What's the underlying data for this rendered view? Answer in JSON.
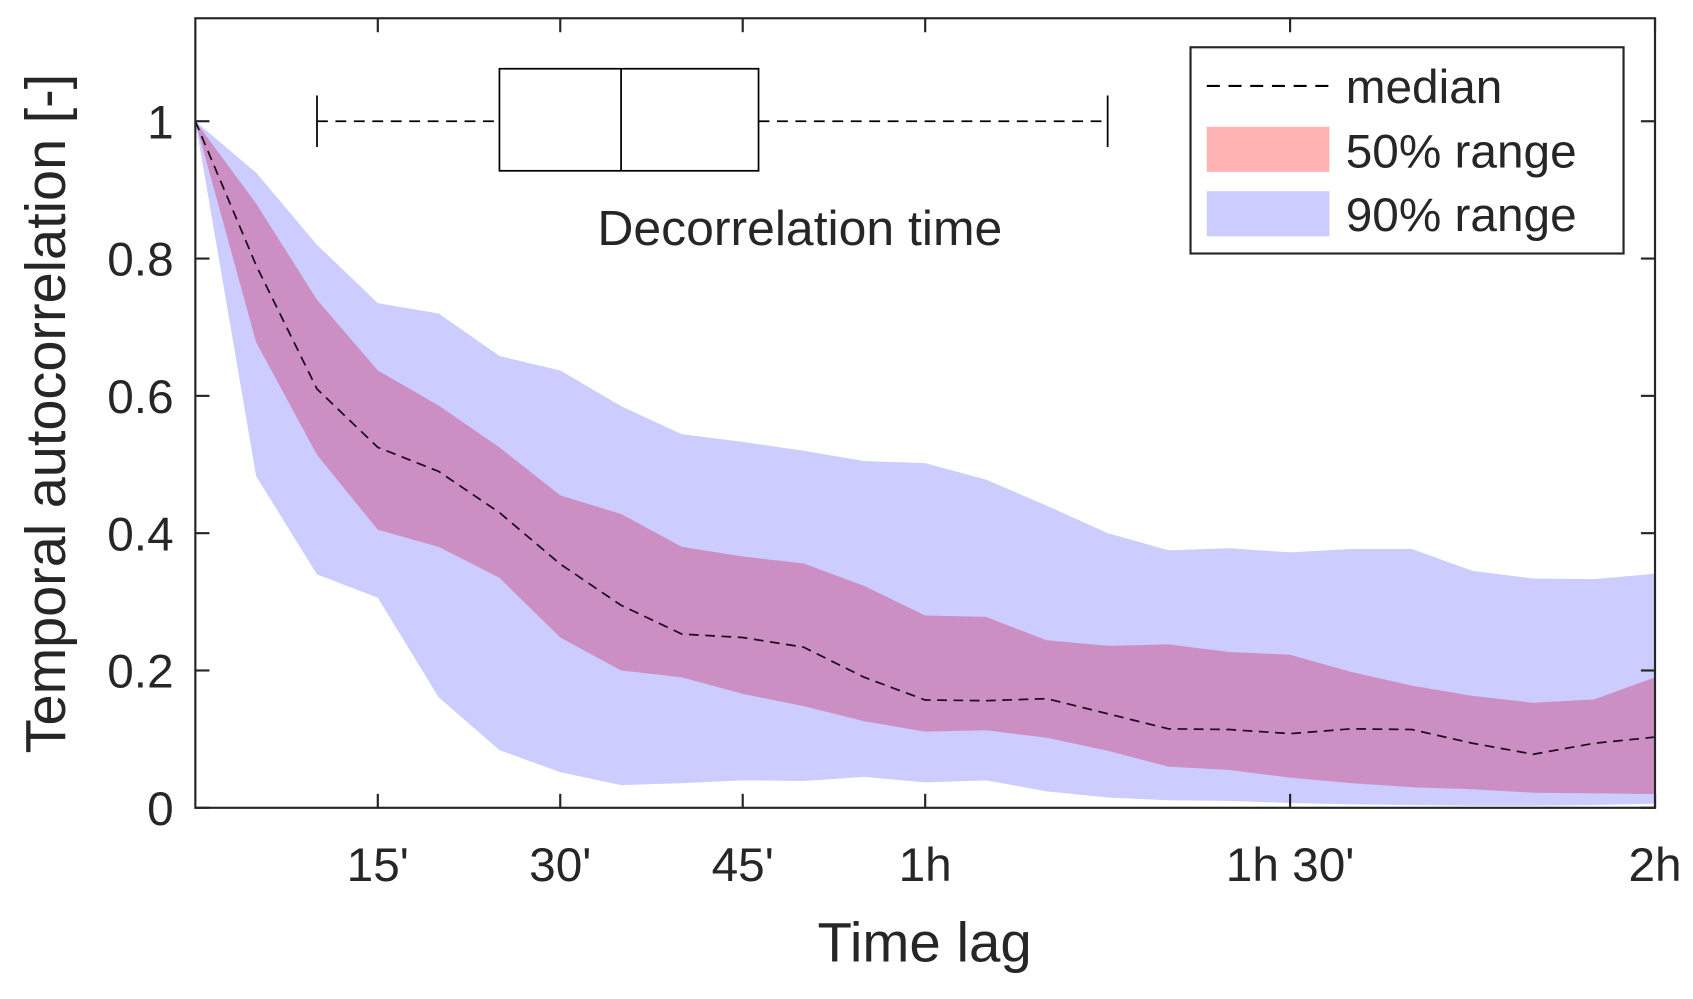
{
  "chart_data": {
    "type": "area",
    "xlabel": "Time lag",
    "ylabel": "Temporal autocorrelation [-]",
    "xlim": [
      0,
      120
    ],
    "ylim": [
      0,
      1.15
    ],
    "x_unit": "minutes",
    "x": [
      0,
      5,
      10,
      15,
      20,
      25,
      30,
      35,
      40,
      45,
      50,
      55,
      60,
      65,
      70,
      75,
      80,
      85,
      90,
      95,
      100,
      105,
      110,
      115,
      120
    ],
    "x_ticks": [
      {
        "value": 15,
        "label": "15'"
      },
      {
        "value": 30,
        "label": "30'"
      },
      {
        "value": 45,
        "label": "45'"
      },
      {
        "value": 60,
        "label": "1h"
      },
      {
        "value": 90,
        "label": "1h 30'"
      },
      {
        "value": 120,
        "label": "2h"
      }
    ],
    "y_ticks": [
      {
        "value": 0,
        "label": "0"
      },
      {
        "value": 0.2,
        "label": "0.2"
      },
      {
        "value": 0.4,
        "label": "0.4"
      },
      {
        "value": 0.6,
        "label": "0.6"
      },
      {
        "value": 0.8,
        "label": "0.8"
      },
      {
        "value": 1,
        "label": "1"
      }
    ],
    "grid": false,
    "legend_position": "top-right",
    "series": [
      {
        "name": "median",
        "style": "dashed",
        "color": "#000000",
        "values": [
          1,
          0.79,
          0.61,
          0.525,
          0.49,
          0.43,
          0.355,
          0.295,
          0.253,
          0.248,
          0.234,
          0.19,
          0.157,
          0.156,
          0.159,
          0.137,
          0.115,
          0.114,
          0.108,
          0.115,
          0.114,
          0.094,
          0.078,
          0.094,
          0.103
        ]
      },
      {
        "name": "50% range",
        "color": "#ffb3b3",
        "overlap_color": "#cc8fc3",
        "upper": [
          1,
          0.88,
          0.74,
          0.637,
          0.586,
          0.525,
          0.455,
          0.428,
          0.38,
          0.366,
          0.356,
          0.323,
          0.28,
          0.278,
          0.244,
          0.236,
          0.238,
          0.227,
          0.223,
          0.198,
          0.178,
          0.163,
          0.153,
          0.158,
          0.19
        ],
        "lower": [
          1,
          0.678,
          0.514,
          0.405,
          0.38,
          0.335,
          0.248,
          0.2,
          0.19,
          0.166,
          0.148,
          0.126,
          0.111,
          0.113,
          0.102,
          0.083,
          0.06,
          0.055,
          0.044,
          0.036,
          0.03,
          0.027,
          0.022,
          0.021,
          0.02
        ]
      },
      {
        "name": "90% range",
        "color": "#ccccff",
        "upper": [
          1,
          0.925,
          0.82,
          0.735,
          0.72,
          0.658,
          0.637,
          0.585,
          0.544,
          0.533,
          0.52,
          0.505,
          0.502,
          0.478,
          0.44,
          0.4,
          0.375,
          0.378,
          0.372,
          0.377,
          0.377,
          0.345,
          0.334,
          0.333,
          0.341
        ],
        "lower": [
          1,
          0.483,
          0.34,
          0.306,
          0.161,
          0.084,
          0.052,
          0.033,
          0.036,
          0.04,
          0.039,
          0.045,
          0.037,
          0.04,
          0.024,
          0.015,
          0.011,
          0.01,
          0.007,
          0.005,
          0.004,
          0.003,
          0.003,
          0.004,
          0.006
        ]
      }
    ],
    "boxplot": {
      "label": "Decorrelation time",
      "whisker_low": 10,
      "q1": 25,
      "median": 35,
      "q3": 46.3,
      "whisker_high": 75
    }
  }
}
